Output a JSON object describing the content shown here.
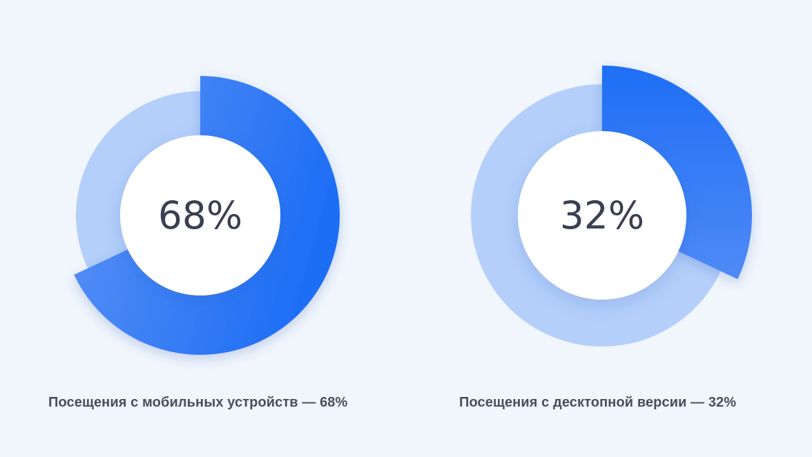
{
  "colors": {
    "background": "#f1f5fc",
    "track": "#b4cffa",
    "highlight_start": "#5b93f5",
    "highlight_end": "#1f6ef5",
    "center": "#ffffff",
    "value_text": "#3a3f52",
    "caption_text": "#4a4d5c"
  },
  "chart_data": [
    {
      "type": "pie",
      "style": "donut",
      "center_label": "68%",
      "caption": "Посещения с мобильных устройств — 68%",
      "slices": [
        {
          "label": "Посещения с мобильных устройств",
          "value": 68,
          "highlighted": true
        },
        {
          "label": "",
          "value": 32,
          "highlighted": false
        }
      ]
    },
    {
      "type": "pie",
      "style": "donut",
      "center_label": "32%",
      "caption": "Посещения с десктопной версии — 32%",
      "slices": [
        {
          "label": "Посещения с десктопной версии",
          "value": 32,
          "highlighted": true
        },
        {
          "label": "",
          "value": 68,
          "highlighted": false
        }
      ]
    }
  ]
}
